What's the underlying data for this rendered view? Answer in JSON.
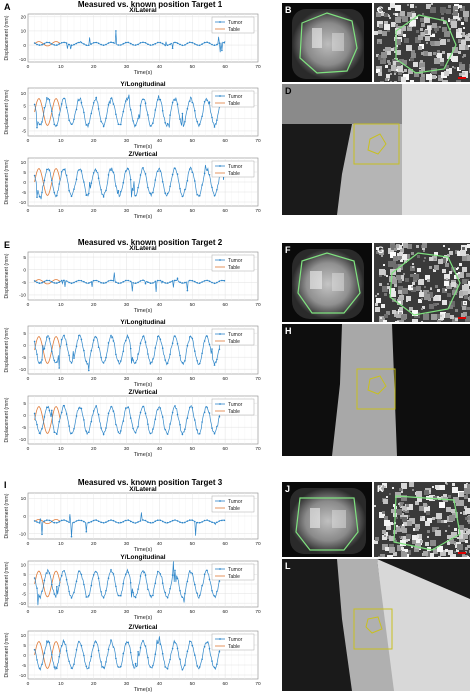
{
  "groups": [
    {
      "letter": "A",
      "title": "Measured vs. known position Target 1",
      "image_letters": [
        "B",
        "C",
        "D"
      ],
      "charts": [
        {
          "label": "X/Lateral",
          "ylabel": "Displacement (mm)",
          "xlabel": "Time(s)",
          "yticks": [
            "20",
            "10",
            "0",
            "-10"
          ],
          "ylim": [
            -12,
            22
          ],
          "xlim": [
            0,
            70
          ],
          "xticks": [
            "0",
            "10",
            "20",
            "30",
            "40",
            "50",
            "60",
            "70"
          ],
          "legend": [
            "Tumor",
            "Table"
          ],
          "type": "lateral"
        },
        {
          "label": "Y/Longitudinal",
          "ylabel": "Displacement (mm)",
          "xlabel": "Time(s)",
          "yticks": [
            "10",
            "5",
            "0",
            "-5"
          ],
          "ylim": [
            -7,
            12
          ],
          "xlim": [
            0,
            70
          ],
          "xticks": [
            "0",
            "10",
            "20",
            "30",
            "40",
            "50",
            "60",
            "70"
          ],
          "legend": [
            "Tumor",
            "Table"
          ],
          "type": "wave"
        },
        {
          "label": "Z/Vertical",
          "ylabel": "Displacement (mm)",
          "xlabel": "Time(s)",
          "yticks": [
            "10",
            "5",
            "0",
            "-5",
            "-10"
          ],
          "ylim": [
            -12,
            12
          ],
          "xlim": [
            0,
            70
          ],
          "xticks": [
            "0",
            "10",
            "20",
            "30",
            "40",
            "50",
            "60",
            "70"
          ],
          "legend": [
            "Tumor",
            "Table"
          ],
          "type": "wave"
        }
      ]
    },
    {
      "letter": "E",
      "title": "Measured vs. known position Target 2",
      "image_letters": [
        "F",
        "G",
        "H"
      ],
      "charts": [
        {
          "label": "X/Lateral",
          "ylabel": "Displacement (mm)",
          "xlabel": "Time(s)",
          "yticks": [
            "5",
            "0",
            "-5",
            "-10"
          ],
          "ylim": [
            -12,
            7
          ],
          "xlim": [
            0,
            70
          ],
          "xticks": [
            "0",
            "10",
            "20",
            "30",
            "40",
            "50",
            "60",
            "70"
          ],
          "legend": [
            "Tumor",
            "Table"
          ],
          "type": "lateral"
        },
        {
          "label": "Y/Longitudinal",
          "ylabel": "Displacement (mm)",
          "xlabel": "Time(s)",
          "yticks": [
            "5",
            "0",
            "-5",
            "-10"
          ],
          "ylim": [
            -12,
            8
          ],
          "xlim": [
            0,
            70
          ],
          "xticks": [
            "0",
            "10",
            "20",
            "30",
            "40",
            "50",
            "60",
            "70"
          ],
          "legend": [
            "Tumor",
            "Table"
          ],
          "type": "wave"
        },
        {
          "label": "Z/Vertical",
          "ylabel": "Displacement (mm)",
          "xlabel": "Time(s)",
          "yticks": [
            "5",
            "0",
            "-5",
            "-10"
          ],
          "ylim": [
            -12,
            8
          ],
          "xlim": [
            0,
            70
          ],
          "xticks": [
            "0",
            "10",
            "20",
            "30",
            "40",
            "50",
            "60",
            "70"
          ],
          "legend": [
            "Tumor",
            "Table"
          ],
          "type": "wave"
        }
      ]
    },
    {
      "letter": "I",
      "title": "Measured vs. known position Target 3",
      "image_letters": [
        "J",
        "K",
        "L"
      ],
      "charts": [
        {
          "label": "X/Lateral",
          "ylabel": "Displacement (mm)",
          "xlabel": "Time(s)",
          "yticks": [
            "10",
            "0",
            "-10"
          ],
          "ylim": [
            -13,
            13
          ],
          "xlim": [
            0,
            70
          ],
          "xticks": [
            "0",
            "10",
            "20",
            "30",
            "40",
            "50",
            "60",
            "70"
          ],
          "legend": [
            "Tumor",
            "Table"
          ],
          "type": "lateral"
        },
        {
          "label": "Y/Longitudinal",
          "ylabel": "Displacement (mm)",
          "xlabel": "Time(s)",
          "yticks": [
            "10",
            "5",
            "0",
            "-5",
            "-10"
          ],
          "ylim": [
            -12,
            12
          ],
          "xlim": [
            0,
            70
          ],
          "xticks": [
            "0",
            "10",
            "20",
            "30",
            "40",
            "50",
            "60",
            "70"
          ],
          "legend": [
            "Tumor",
            "Table"
          ],
          "type": "wave"
        },
        {
          "label": "Z/Vertical",
          "ylabel": "Displacement (mm)",
          "xlabel": "Time(s)",
          "yticks": [
            "10",
            "5",
            "0",
            "-5",
            "-10"
          ],
          "ylim": [
            -12,
            12
          ],
          "xlim": [
            0,
            70
          ],
          "xticks": [
            "0",
            "10",
            "20",
            "30",
            "40",
            "50",
            "60",
            "70"
          ],
          "legend": [
            "Tumor",
            "Table"
          ],
          "type": "wave"
        }
      ]
    }
  ],
  "colors": {
    "tumor": "#2e86c9",
    "table": "#e07b39",
    "grid": "#d9d9d9",
    "contour": "#7fe27f",
    "roi": "#c8c020"
  },
  "chart_data": [
    {
      "type": "line",
      "title": "X/Lateral",
      "xlabel": "Time(s)",
      "ylabel": "Displacement (mm)",
      "xlim": [
        0,
        70
      ],
      "ylim": [
        -12,
        22
      ],
      "series": [
        {
          "name": "Tumor"
        },
        {
          "name": "Table"
        }
      ]
    },
    {
      "type": "line",
      "title": "Y/Longitudinal",
      "xlabel": "Time(s)",
      "ylabel": "Displacement (mm)",
      "xlim": [
        0,
        70
      ],
      "ylim": [
        -7,
        12
      ],
      "series": [
        {
          "name": "Tumor"
        },
        {
          "name": "Table"
        }
      ]
    },
    {
      "type": "line",
      "title": "Z/Vertical",
      "xlabel": "Time(s)",
      "ylabel": "Displacement (mm)",
      "xlim": [
        0,
        70
      ],
      "ylim": [
        -12,
        12
      ],
      "series": [
        {
          "name": "Tumor"
        },
        {
          "name": "Table"
        }
      ]
    }
  ]
}
